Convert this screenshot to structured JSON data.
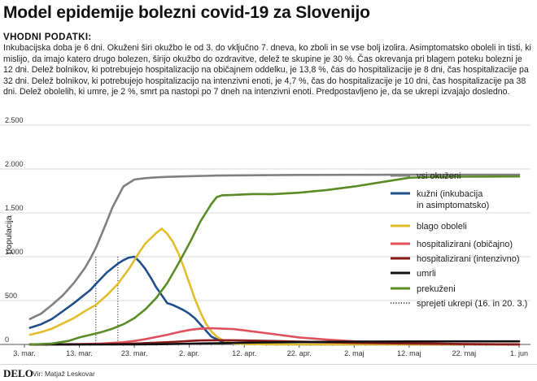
{
  "title": "Model epidemije bolezni covid-19 za Slovenijo",
  "subhead": "VHODNI PODATKI:",
  "body_text": "Inkubacijska doba je 6 dni. Okuženi širi okužbo le od 3. do vključno 7. dneva, ko zboli in se vse bolj izolira. Asimptomatsko oboleli in tisti, ki mislijo, da imajo katero drugo bolezen, širijo okužbo do ozdravitve, delež te skupine je 30 %. Čas okrevanja pri blagem poteku bolezni je 12 dni. Delež bolnikov, ki potrebujejo hospitalizacijo na običajnem oddelku, je 13,8 %, čas do hospitalizacije je 8 dni, čas hospitalizacije pa 32 dni. Delež bolnikov, ki potrebujejo hospitalizacijo na intenzivni enoti, je 4,7 %, čas do hospitalizacije je 10 dni, čas hospitalizacije pa 38 dni. Delež obolelih, ki umre, je 2 %, smrt pa nastopi po 7 dneh na intenzivni enoti. Predpostavljeno je, da se ukrepi izvajajo dosledno.",
  "footer": {
    "logo": "DELO",
    "source": "Vir: Matjaž Leskovar"
  },
  "chart_data": {
    "type": "line",
    "ylabel": "populacija",
    "ylim": [
      0,
      2500
    ],
    "yticks": [
      0,
      500,
      1000,
      1500,
      2000,
      2500
    ],
    "ytick_labels": [
      "0",
      "500",
      "1.000",
      "1.500",
      "2.000",
      "2.500"
    ],
    "xlim": [
      0,
      90
    ],
    "xticks": [
      0,
      10,
      20,
      30,
      40,
      50,
      60,
      70,
      80,
      90
    ],
    "xtick_labels": [
      "3. mar.",
      "13. mar.",
      "23. mar.",
      "2. apr.",
      "12. apr.",
      "22. apr.",
      "2. maj",
      "12. maj",
      "22. maj",
      "1. jun"
    ],
    "grid": "horizontal",
    "legend": "right",
    "series": [
      {
        "name": "vsi okuženi",
        "color": "#808080",
        "x": [
          1,
          3,
          5,
          7,
          9,
          11,
          12,
          13,
          14,
          15,
          16,
          18,
          20,
          22,
          24,
          26,
          30,
          35,
          40,
          45,
          50,
          60,
          70,
          80,
          90
        ],
        "y": [
          290,
          350,
          450,
          560,
          700,
          870,
          980,
          1100,
          1250,
          1400,
          1560,
          1800,
          1880,
          1895,
          1905,
          1910,
          1918,
          1925,
          1928,
          1930,
          1932,
          1933,
          1934,
          1935,
          1935
        ]
      },
      {
        "name": "kužni (inkubacija in asimptomatsko)",
        "color": "#1f4e8c",
        "x": [
          1,
          3,
          5,
          7,
          9,
          11,
          12,
          13,
          15,
          17,
          18,
          19,
          20,
          21,
          22,
          23,
          24,
          25,
          26,
          27,
          28,
          29,
          30,
          31,
          32,
          33,
          34,
          36,
          38,
          42,
          50,
          60,
          70,
          80,
          90
        ],
        "y": [
          190,
          230,
          290,
          380,
          470,
          570,
          620,
          690,
          820,
          920,
          960,
          990,
          1000,
          940,
          860,
          760,
          650,
          560,
          470,
          450,
          420,
          390,
          350,
          300,
          230,
          160,
          90,
          30,
          10,
          3,
          1,
          0,
          0,
          0,
          0
        ]
      },
      {
        "name": "blago oboleli",
        "color": "#e3bd2c",
        "x": [
          1,
          3,
          5,
          7,
          9,
          11,
          13,
          15,
          17,
          19,
          21,
          22,
          23,
          24,
          25,
          26,
          27,
          28,
          29,
          30,
          31,
          32,
          33,
          34,
          35,
          36,
          37,
          38,
          40,
          45,
          50,
          60,
          70,
          80,
          90
        ],
        "y": [
          110,
          140,
          180,
          240,
          300,
          380,
          450,
          560,
          690,
          860,
          1060,
          1150,
          1210,
          1270,
          1320,
          1260,
          1170,
          1040,
          880,
          700,
          520,
          370,
          240,
          150,
          90,
          50,
          25,
          12,
          5,
          1,
          0,
          0,
          0,
          0,
          0
        ]
      },
      {
        "name": "hospitalizirani (običajno)",
        "color": "#e0505a",
        "x": [
          1,
          5,
          10,
          14,
          18,
          20,
          22,
          24,
          26,
          28,
          30,
          32,
          34,
          36,
          38,
          40,
          45,
          50,
          55,
          60,
          70,
          80,
          90
        ],
        "y": [
          0,
          2,
          5,
          10,
          25,
          40,
          60,
          85,
          110,
          140,
          165,
          180,
          185,
          180,
          175,
          160,
          120,
          80,
          55,
          35,
          15,
          5,
          1
        ]
      },
      {
        "name": "hospitalizirani (intenzivno)",
        "color": "#8b1a1a",
        "x": [
          1,
          10,
          15,
          20,
          25,
          28,
          30,
          32,
          35,
          38,
          40,
          45,
          50,
          55,
          60,
          70,
          80,
          90
        ],
        "y": [
          0,
          1,
          3,
          10,
          22,
          32,
          40,
          45,
          48,
          47,
          45,
          40,
          32,
          25,
          18,
          10,
          4,
          1
        ]
      },
      {
        "name": "umrli",
        "color": "#111111",
        "x": [
          1,
          10,
          15,
          20,
          25,
          30,
          35,
          40,
          50,
          60,
          70,
          80,
          90
        ],
        "y": [
          0,
          0,
          0,
          1,
          3,
          8,
          14,
          20,
          28,
          32,
          34,
          35,
          35
        ]
      },
      {
        "name": "prekuženi",
        "color": "#5a8c25",
        "x": [
          1,
          5,
          8,
          10,
          12,
          14,
          16,
          18,
          20,
          22,
          24,
          26,
          28,
          30,
          32,
          34,
          35,
          36,
          38,
          40,
          42,
          45,
          50,
          55,
          60,
          65,
          70,
          75,
          80,
          85,
          90
        ],
        "y": [
          0,
          10,
          40,
          80,
          110,
          140,
          180,
          230,
          300,
          400,
          530,
          700,
          920,
          1150,
          1400,
          1600,
          1680,
          1700,
          1705,
          1710,
          1715,
          1712,
          1730,
          1760,
          1800,
          1850,
          1900,
          1910,
          1912,
          1914,
          1915
        ]
      }
    ],
    "reference_lines": {
      "name": "sprejeti ukrepi (16. in 20. 3.)",
      "x": [
        13,
        17
      ]
    }
  }
}
